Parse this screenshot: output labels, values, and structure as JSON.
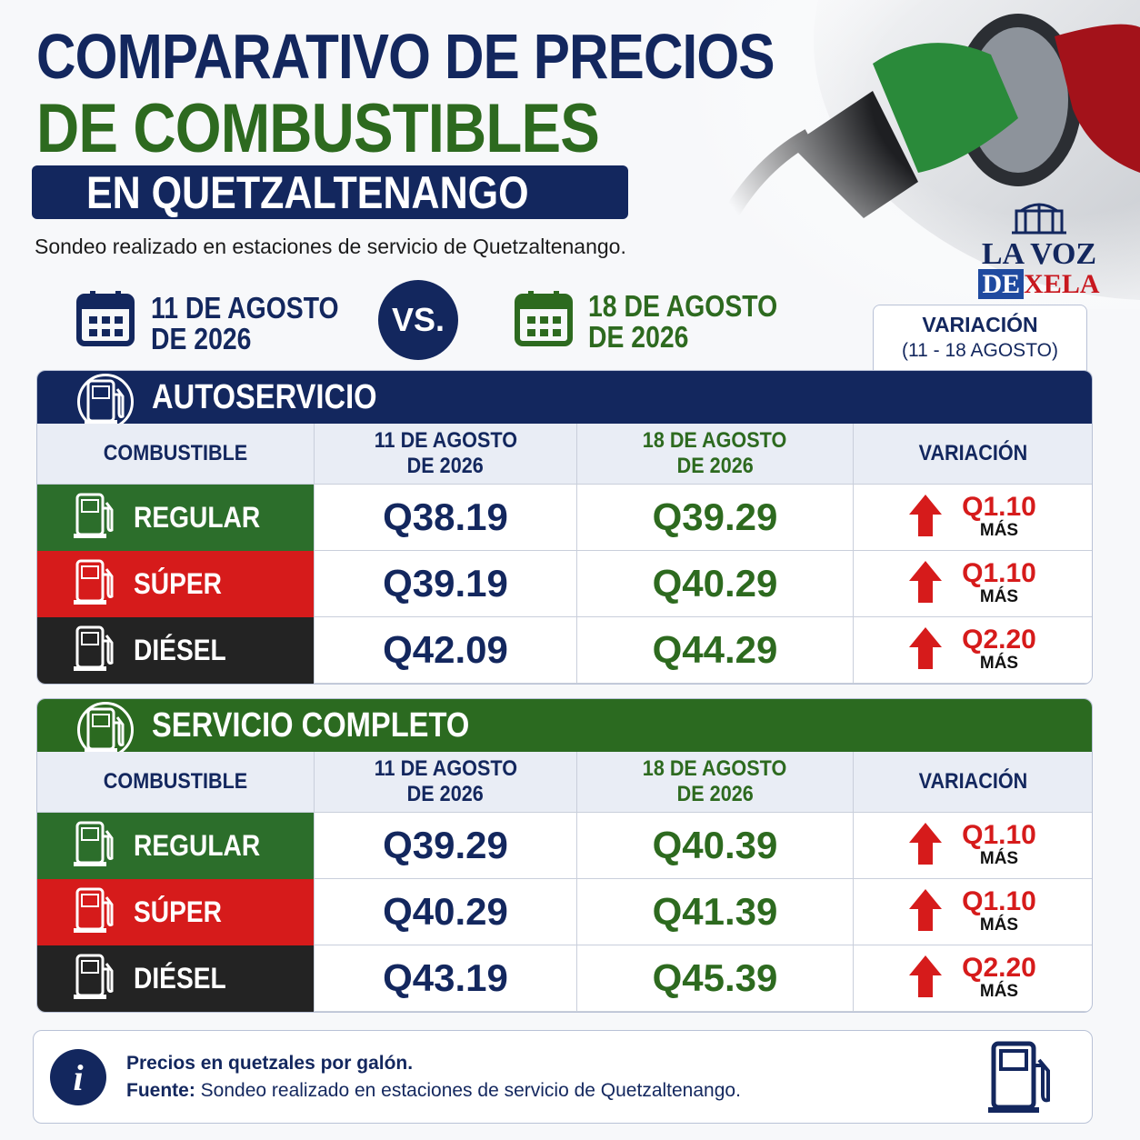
{
  "header": {
    "title_line1": "COMPARATIVO DE PRECIOS",
    "title_line2": "DE COMBUSTIBLES",
    "title_line3": "EN QUETZALTENANGO",
    "subtitle": "Sondeo realizado en estaciones de servicio de Quetzaltenango."
  },
  "logo": {
    "line1": "LA VOZ",
    "line2a": "DE",
    "line2b": "XELA"
  },
  "dates": {
    "from": [
      "11 DE AGOSTO",
      "DE 2026"
    ],
    "vs": "VS.",
    "to": [
      "18 DE AGOSTO",
      "DE 2026"
    ],
    "variation_label": "VARIACIÓN",
    "variation_range": "(11 - 18 AGOSTO)"
  },
  "tables": [
    {
      "title": "AUTOSERVICIO",
      "columns": [
        [
          "COMBUSTIBLE"
        ],
        [
          "11 DE AGOSTO",
          "DE 2026"
        ],
        [
          "18 DE AGOSTO",
          "DE 2026"
        ],
        [
          "VARIACIÓN"
        ]
      ],
      "rows": [
        {
          "fuel": "REGULAR",
          "price_before": "Q38.19",
          "price_after": "Q39.29",
          "change": "Q1.10",
          "change_note": "MÁS"
        },
        {
          "fuel": "SÚPER",
          "price_before": "Q39.19",
          "price_after": "Q40.29",
          "change": "Q1.10",
          "change_note": "MÁS"
        },
        {
          "fuel": "DIÉSEL",
          "price_before": "Q42.09",
          "price_after": "Q44.29",
          "change": "Q2.20",
          "change_note": "MÁS"
        }
      ]
    },
    {
      "title": "SERVICIO COMPLETO",
      "columns": [
        [
          "COMBUSTIBLE"
        ],
        [
          "11 DE AGOSTO",
          "DE 2026"
        ],
        [
          "18 DE AGOSTO",
          "DE 2026"
        ],
        [
          "VARIACIÓN"
        ]
      ],
      "rows": [
        {
          "fuel": "REGULAR",
          "price_before": "Q39.29",
          "price_after": "Q40.39",
          "change": "Q1.10",
          "change_note": "MÁS"
        },
        {
          "fuel": "SÚPER",
          "price_before": "Q40.29",
          "price_after": "Q41.39",
          "change": "Q1.10",
          "change_note": "MÁS"
        },
        {
          "fuel": "DIÉSEL",
          "price_before": "Q43.19",
          "price_after": "Q45.39",
          "change": "Q2.20",
          "change_note": "MÁS"
        }
      ]
    }
  ],
  "footer": {
    "note": "Precios en quetzales por galón.",
    "source_label": "Fuente:",
    "source_text": "Sondeo realizado en estaciones de servicio de Quetzaltenango."
  }
}
